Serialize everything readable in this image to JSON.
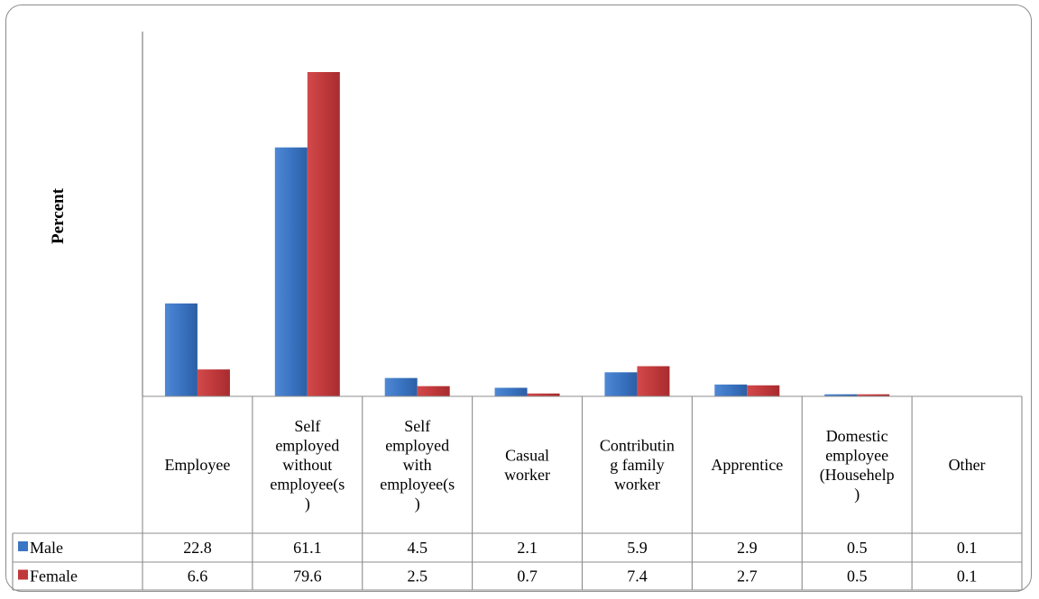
{
  "chart_data": {
    "type": "bar",
    "ylabel": "Percent",
    "categories": [
      [
        "Employee"
      ],
      [
        "Self",
        "employed",
        "without",
        "employee(s",
        ")"
      ],
      [
        "Self",
        "employed",
        "with",
        "employee(s",
        ")"
      ],
      [
        "Casual",
        "worker"
      ],
      [
        "Contributin",
        "g family",
        "worker"
      ],
      [
        "Apprentice"
      ],
      [
        "Domestic",
        "employee",
        "(Househelp",
        ")"
      ],
      [
        "Other"
      ]
    ],
    "series": [
      {
        "name": "Male",
        "color": "#3b76c4",
        "values": [
          22.8,
          61.1,
          4.5,
          2.1,
          5.9,
          2.9,
          0.5,
          0.1
        ],
        "labels": [
          "22.8",
          "61.1",
          "4.5",
          "2.1",
          "5.9",
          "2.9",
          "0.5",
          "0.1"
        ]
      },
      {
        "name": "Female",
        "color": "#c0393b",
        "values": [
          6.6,
          79.6,
          2.5,
          0.7,
          7.4,
          2.7,
          0.5,
          0.1
        ],
        "labels": [
          "6.6",
          "79.6",
          "2.5",
          "0.7",
          "7.4",
          "2.7",
          "0.5",
          "0.1"
        ]
      }
    ],
    "ylim": [
      0,
      80
    ],
    "legend": "data-table"
  }
}
